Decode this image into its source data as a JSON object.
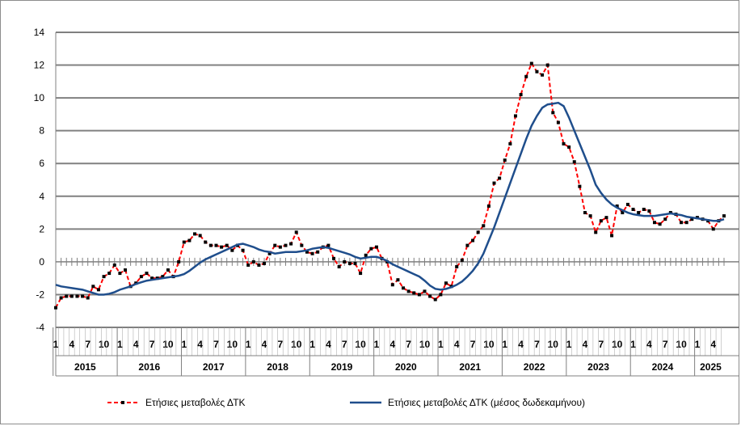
{
  "chart_data": {
    "type": "line",
    "ylim": [
      -4,
      14
    ],
    "yticks": [
      14,
      12,
      10,
      8,
      6,
      4,
      2,
      0,
      -2,
      -4
    ],
    "grid": true,
    "legend_position": "bottom",
    "month_tick_labels": [
      "1",
      "4",
      "7",
      "10"
    ],
    "years": [
      "2015",
      "2016",
      "2017",
      "2018",
      "2019",
      "2020",
      "2021",
      "2022",
      "2023",
      "2024",
      "2025"
    ],
    "x_start": "2015-01",
    "x_end": "2025-06",
    "series": [
      {
        "name": "Ετήσιες μεταβολές ΔΤΚ",
        "color": "#ff0000",
        "marker_color": "#000000",
        "style": "dashed-with-square-markers",
        "values": [
          -2.8,
          -2.2,
          -2.1,
          -2.1,
          -2.1,
          -2.1,
          -2.2,
          -1.5,
          -1.7,
          -0.9,
          -0.7,
          -0.2,
          -0.7,
          -0.5,
          -1.5,
          -1.3,
          -0.9,
          -0.7,
          -1.0,
          -1.0,
          -0.9,
          -0.5,
          -0.9,
          0.0,
          1.2,
          1.3,
          1.7,
          1.6,
          1.2,
          1.0,
          1.0,
          0.9,
          1.0,
          0.7,
          1.0,
          0.7,
          -0.2,
          0.0,
          -0.2,
          -0.1,
          0.5,
          1.0,
          0.9,
          1.0,
          1.1,
          1.8,
          1.0,
          0.6,
          0.5,
          0.6,
          0.9,
          1.0,
          0.2,
          -0.3,
          0.0,
          -0.1,
          -0.1,
          -0.7,
          0.4,
          0.8,
          0.9,
          0.2,
          0.0,
          -1.4,
          -1.1,
          -1.6,
          -1.8,
          -1.9,
          -2.0,
          -1.8,
          -2.1,
          -2.3,
          -2.0,
          -1.3,
          -1.5,
          -0.3,
          0.1,
          1.0,
          1.3,
          1.8,
          2.2,
          3.4,
          4.8,
          5.1,
          6.2,
          7.2,
          8.9,
          10.2,
          11.3,
          12.1,
          11.6,
          11.4,
          12.0,
          9.1,
          8.5,
          7.2,
          7.0,
          6.1,
          4.6,
          3.0,
          2.8,
          1.8,
          2.5,
          2.7,
          1.6,
          3.4,
          3.0,
          3.5,
          3.2,
          3.0,
          3.2,
          3.1,
          2.4,
          2.3,
          2.6,
          3.0,
          2.9,
          2.4,
          2.4,
          2.6,
          2.7,
          2.6,
          2.5,
          2.0,
          2.5,
          2.8
        ]
      },
      {
        "name": "Ετήσιες μεταβολές ΔΤΚ (μέσος δωδεκαμήνου)",
        "color": "#1f4e8c",
        "style": "solid",
        "values": [
          -1.4,
          -1.5,
          -1.55,
          -1.6,
          -1.65,
          -1.7,
          -1.8,
          -1.9,
          -2.0,
          -2.0,
          -1.95,
          -1.85,
          -1.7,
          -1.6,
          -1.5,
          -1.35,
          -1.25,
          -1.15,
          -1.1,
          -1.05,
          -1.0,
          -0.95,
          -0.9,
          -0.85,
          -0.75,
          -0.55,
          -0.3,
          -0.05,
          0.15,
          0.3,
          0.45,
          0.6,
          0.75,
          0.9,
          1.05,
          1.1,
          1.0,
          0.9,
          0.75,
          0.65,
          0.6,
          0.5,
          0.55,
          0.6,
          0.6,
          0.6,
          0.65,
          0.7,
          0.8,
          0.85,
          0.9,
          0.85,
          0.75,
          0.65,
          0.55,
          0.45,
          0.3,
          0.2,
          0.25,
          0.3,
          0.3,
          0.2,
          0.05,
          -0.15,
          -0.3,
          -0.45,
          -0.6,
          -0.75,
          -0.9,
          -1.15,
          -1.45,
          -1.65,
          -1.7,
          -1.65,
          -1.55,
          -1.4,
          -1.2,
          -0.9,
          -0.55,
          -0.1,
          0.5,
          1.3,
          2.1,
          3.0,
          3.9,
          4.8,
          5.7,
          6.6,
          7.5,
          8.3,
          8.9,
          9.4,
          9.6,
          9.65,
          9.7,
          9.5,
          8.8,
          8.0,
          7.2,
          6.4,
          5.6,
          4.7,
          4.2,
          3.8,
          3.5,
          3.3,
          3.15,
          3.0,
          2.9,
          2.85,
          2.8,
          2.8,
          2.8,
          2.85,
          2.9,
          2.95,
          2.9,
          2.85,
          2.75,
          2.7,
          2.65,
          2.6,
          2.55,
          2.5,
          2.5,
          2.6
        ]
      }
    ]
  }
}
